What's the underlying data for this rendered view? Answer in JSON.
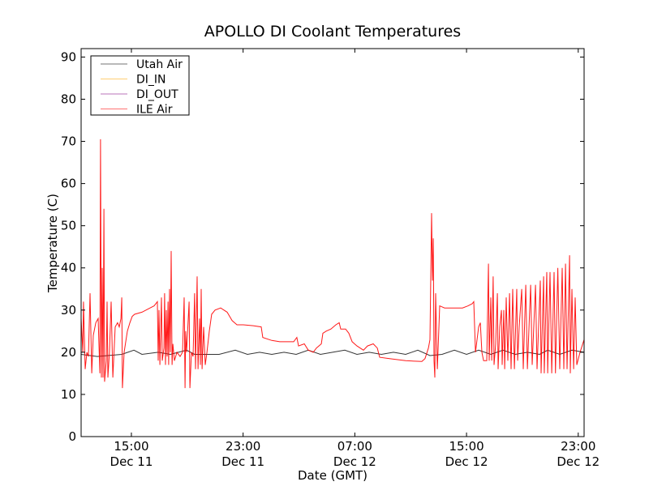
{
  "chart_data": {
    "type": "line",
    "title": "APOLLO DI Coolant Temperatures",
    "xlabel": "Date (GMT)",
    "ylabel": "Temperature (C)",
    "x_units": "hours since Dec 11 00:00 GMT",
    "xlim": [
      11.4,
      47.42
    ],
    "ylim": [
      0,
      92
    ],
    "grid": false,
    "legend_placement": "top-left",
    "yticks": [
      0,
      10,
      20,
      30,
      40,
      50,
      60,
      70,
      80,
      90
    ],
    "xticks": [
      {
        "value": 15,
        "label": [
          "15:00",
          "Dec 11"
        ]
      },
      {
        "value": 23,
        "label": [
          "23:00",
          "Dec 11"
        ]
      },
      {
        "value": 31,
        "label": [
          "07:00",
          "Dec 12"
        ]
      },
      {
        "value": 39,
        "label": [
          "15:00",
          "Dec 12"
        ]
      },
      {
        "value": 47,
        "label": [
          "23:00",
          "Dec 12"
        ]
      }
    ],
    "series": [
      {
        "name": "Utah Air",
        "color": "#000000",
        "points": [
          [
            11.4,
            19.5
          ],
          [
            12.56,
            19
          ],
          [
            14.31,
            19.5
          ],
          [
            15.18,
            20.5
          ],
          [
            15.76,
            19.5
          ],
          [
            16.92,
            20
          ],
          [
            17.79,
            19.5
          ],
          [
            18.95,
            20.5
          ],
          [
            19.53,
            19.5
          ],
          [
            21.28,
            19.5
          ],
          [
            22.44,
            20.5
          ],
          [
            23.31,
            19.5
          ],
          [
            24.18,
            20
          ],
          [
            25.05,
            19.5
          ],
          [
            25.93,
            20
          ],
          [
            26.8,
            19.5
          ],
          [
            27.67,
            20.5
          ],
          [
            28.54,
            19.5
          ],
          [
            29.41,
            20
          ],
          [
            30.28,
            20.5
          ],
          [
            31.15,
            19.5
          ],
          [
            32.03,
            20
          ],
          [
            32.9,
            19.5
          ],
          [
            33.77,
            20
          ],
          [
            34.64,
            19.5
          ],
          [
            35.51,
            20.5
          ],
          [
            36.38,
            19.2
          ],
          [
            37.25,
            19.5
          ],
          [
            38.13,
            20.5
          ],
          [
            39.0,
            19.5
          ],
          [
            39.87,
            20.5
          ],
          [
            40.74,
            19.5
          ],
          [
            41.61,
            20.5
          ],
          [
            42.48,
            19.5
          ],
          [
            43.36,
            20
          ],
          [
            44.23,
            19.5
          ],
          [
            44.81,
            20.5
          ],
          [
            45.68,
            19.5
          ],
          [
            46.55,
            20.5
          ],
          [
            47.42,
            20
          ]
        ]
      },
      {
        "name": "DI_IN",
        "color": "#ffa500",
        "points": []
      },
      {
        "name": "DI_OUT",
        "color": "#800080",
        "points": []
      },
      {
        "name": "ILE Air",
        "color": "#ff0000",
        "points": [
          [
            11.4,
            28
          ],
          [
            11.52,
            20
          ],
          [
            11.57,
            32
          ],
          [
            11.69,
            16
          ],
          [
            11.81,
            20
          ],
          [
            11.92,
            19
          ],
          [
            12.04,
            34
          ],
          [
            12.16,
            15
          ],
          [
            12.27,
            24
          ],
          [
            12.45,
            27
          ],
          [
            12.62,
            28
          ],
          [
            12.74,
            15
          ],
          [
            12.79,
            70.5
          ],
          [
            12.85,
            14
          ],
          [
            12.91,
            40
          ],
          [
            12.97,
            14
          ],
          [
            13.03,
            54
          ],
          [
            13.08,
            13
          ],
          [
            13.2,
            18
          ],
          [
            13.26,
            32
          ],
          [
            13.32,
            14
          ],
          [
            13.43,
            20
          ],
          [
            13.55,
            32
          ],
          [
            13.67,
            14
          ],
          [
            13.84,
            26
          ],
          [
            14.01,
            27
          ],
          [
            14.13,
            26
          ],
          [
            14.25,
            28
          ],
          [
            14.31,
            33
          ],
          [
            14.36,
            11.5
          ],
          [
            14.48,
            20
          ],
          [
            14.71,
            25
          ],
          [
            14.89,
            27
          ],
          [
            15.06,
            28.5
          ],
          [
            15.23,
            29
          ],
          [
            15.76,
            29.5
          ],
          [
            16.34,
            30.5
          ],
          [
            16.63,
            31
          ],
          [
            16.86,
            32
          ],
          [
            16.92,
            18
          ],
          [
            16.98,
            30
          ],
          [
            17.04,
            17
          ],
          [
            17.15,
            33
          ],
          [
            17.21,
            18
          ],
          [
            17.33,
            21
          ],
          [
            17.38,
            34
          ],
          [
            17.44,
            17
          ],
          [
            17.5,
            30
          ],
          [
            17.56,
            19
          ],
          [
            17.62,
            32
          ],
          [
            17.67,
            17
          ],
          [
            17.73,
            35
          ],
          [
            17.79,
            20
          ],
          [
            17.85,
            44
          ],
          [
            17.91,
            17
          ],
          [
            17.97,
            22
          ],
          [
            18.08,
            18
          ],
          [
            18.26,
            20
          ],
          [
            18.49,
            19
          ],
          [
            18.66,
            20
          ],
          [
            18.78,
            33
          ],
          [
            18.84,
            11.5
          ],
          [
            18.89,
            25
          ],
          [
            18.95,
            20
          ],
          [
            19.13,
            32
          ],
          [
            19.19,
            11.5
          ],
          [
            19.3,
            20
          ],
          [
            19.42,
            19
          ],
          [
            19.53,
            34
          ],
          [
            19.59,
            16
          ],
          [
            19.71,
            38
          ],
          [
            19.77,
            16
          ],
          [
            19.88,
            28
          ],
          [
            19.94,
            17
          ],
          [
            20.0,
            35
          ],
          [
            20.06,
            16
          ],
          [
            20.17,
            26
          ],
          [
            20.29,
            17
          ],
          [
            20.41,
            20
          ],
          [
            20.58,
            25
          ],
          [
            20.75,
            29
          ],
          [
            20.99,
            30
          ],
          [
            21.39,
            30.5
          ],
          [
            21.86,
            29.5
          ],
          [
            22.21,
            27.5
          ],
          [
            22.56,
            26.5
          ],
          [
            23.02,
            26.5
          ],
          [
            23.72,
            26.3
          ],
          [
            24.3,
            26
          ],
          [
            24.41,
            23.5
          ],
          [
            25.05,
            22.8
          ],
          [
            25.63,
            22.5
          ],
          [
            26.22,
            22.5
          ],
          [
            26.62,
            22.5
          ],
          [
            26.85,
            23.5
          ],
          [
            26.97,
            21.5
          ],
          [
            27.38,
            22
          ],
          [
            27.67,
            20.5
          ],
          [
            28.02,
            20
          ],
          [
            28.25,
            21
          ],
          [
            28.6,
            22
          ],
          [
            28.71,
            24.5
          ],
          [
            28.95,
            25
          ],
          [
            29.29,
            25.5
          ],
          [
            29.64,
            26.5
          ],
          [
            29.88,
            27
          ],
          [
            29.99,
            25.5
          ],
          [
            30.34,
            25.5
          ],
          [
            30.57,
            24.5
          ],
          [
            30.81,
            22.5
          ],
          [
            31.15,
            21.5
          ],
          [
            31.62,
            20.5
          ],
          [
            31.91,
            21.5
          ],
          [
            32.32,
            22
          ],
          [
            32.61,
            21
          ],
          [
            32.78,
            18.8
          ],
          [
            33.48,
            18.5
          ],
          [
            34.64,
            18
          ],
          [
            35.8,
            17.8
          ],
          [
            36.03,
            18.5
          ],
          [
            36.27,
            21
          ],
          [
            36.38,
            23
          ],
          [
            36.5,
            53
          ],
          [
            36.56,
            37
          ],
          [
            36.62,
            47
          ],
          [
            36.67,
            18
          ],
          [
            36.73,
            14
          ],
          [
            36.79,
            34
          ],
          [
            36.91,
            16
          ],
          [
            37.08,
            31
          ],
          [
            37.43,
            30.5
          ],
          [
            38.13,
            30.5
          ],
          [
            38.71,
            30.5
          ],
          [
            39.11,
            31
          ],
          [
            39.4,
            31.5
          ],
          [
            39.52,
            32
          ],
          [
            39.64,
            20
          ],
          [
            39.87,
            26
          ],
          [
            39.99,
            27
          ],
          [
            40.1,
            20
          ],
          [
            40.22,
            18
          ],
          [
            40.45,
            18
          ],
          [
            40.57,
            41
          ],
          [
            40.62,
            18
          ],
          [
            40.74,
            33
          ],
          [
            40.8,
            18
          ],
          [
            40.91,
            38
          ],
          [
            40.97,
            17
          ],
          [
            41.09,
            22
          ],
          [
            41.21,
            34
          ],
          [
            41.26,
            16
          ],
          [
            41.38,
            26
          ],
          [
            41.5,
            30
          ],
          [
            41.55,
            17
          ],
          [
            41.67,
            30
          ],
          [
            41.73,
            16
          ],
          [
            41.84,
            33
          ],
          [
            41.96,
            18
          ],
          [
            42.08,
            34
          ],
          [
            42.19,
            16
          ],
          [
            42.31,
            35
          ],
          [
            42.43,
            16
          ],
          [
            42.6,
            35
          ],
          [
            42.66,
            18
          ],
          [
            42.77,
            26
          ],
          [
            42.95,
            35
          ],
          [
            43.06,
            16
          ],
          [
            43.24,
            36
          ],
          [
            43.36,
            16
          ],
          [
            43.59,
            36
          ],
          [
            43.7,
            17
          ],
          [
            43.94,
            36
          ],
          [
            44.05,
            16
          ],
          [
            44.28,
            37
          ],
          [
            44.34,
            15
          ],
          [
            44.52,
            38
          ],
          [
            44.57,
            15
          ],
          [
            44.75,
            39
          ],
          [
            44.81,
            15
          ],
          [
            44.98,
            39
          ],
          [
            45.1,
            15
          ],
          [
            45.27,
            39
          ],
          [
            45.37,
            15
          ],
          [
            45.54,
            40
          ],
          [
            45.68,
            16
          ],
          [
            45.85,
            40
          ],
          [
            45.97,
            16
          ],
          [
            46.09,
            41
          ],
          [
            46.2,
            16
          ],
          [
            46.38,
            43
          ],
          [
            46.43,
            15
          ],
          [
            46.55,
            35
          ],
          [
            46.67,
            16
          ],
          [
            46.78,
            33
          ],
          [
            46.9,
            17
          ],
          [
            47.13,
            20
          ],
          [
            47.42,
            23
          ]
        ]
      }
    ]
  }
}
